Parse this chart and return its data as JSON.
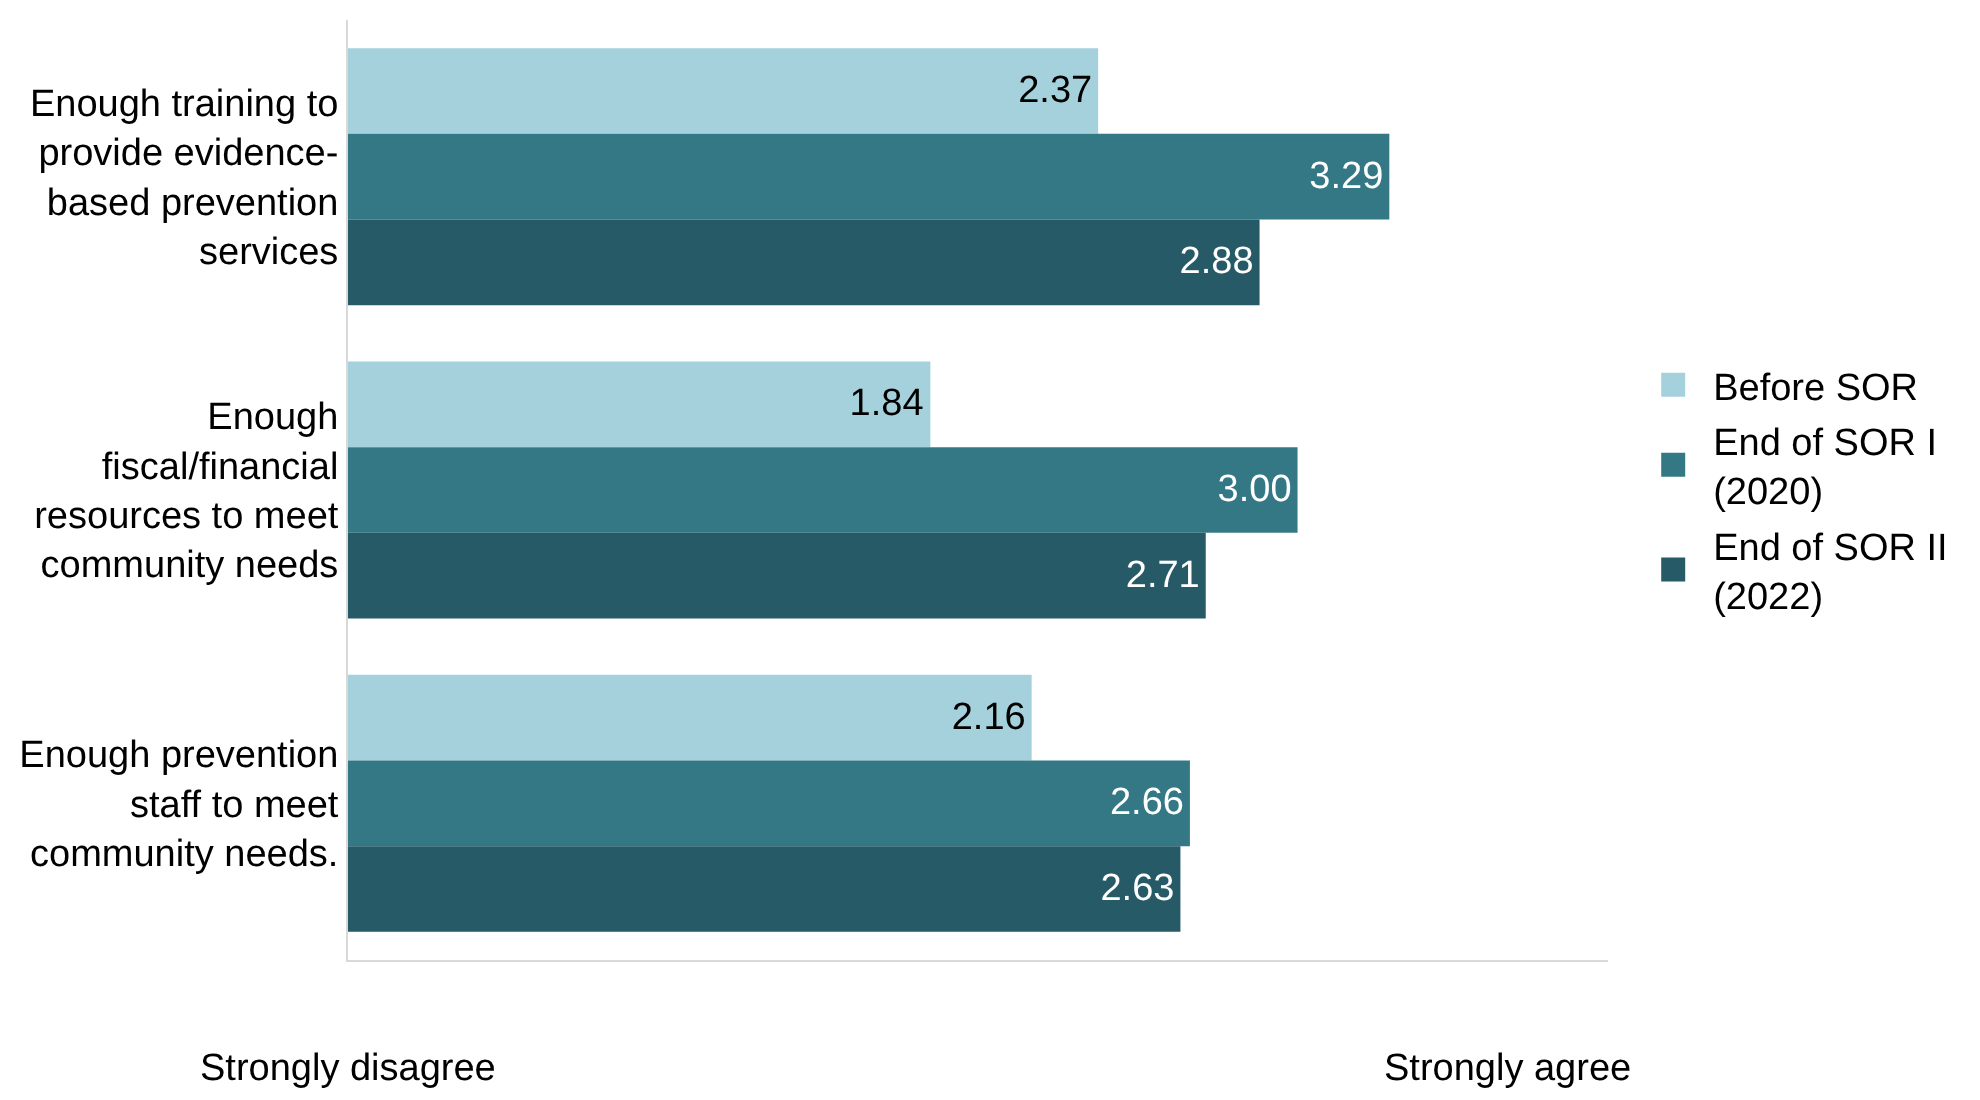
{
  "chart_data": {
    "type": "bar",
    "orientation": "horizontal",
    "categories": [
      "Enough training to provide evidence-based prevention services",
      "Enough fiscal/financial resources to meet community needs",
      "Enough prevention staff to meet community needs."
    ],
    "series": [
      {
        "name": "Before SOR",
        "color": "#a5d1dc",
        "values": [
          2.37,
          1.84,
          2.16
        ],
        "value_labels": [
          "2.37",
          "1.84",
          "2.16"
        ]
      },
      {
        "name": "End of SOR I (2020)",
        "color": "#347886",
        "values": [
          3.29,
          3.0,
          2.66
        ],
        "value_labels": [
          "3.29",
          "3.00",
          "2.66"
        ]
      },
      {
        "name": "End of SOR II (2022)",
        "color": "#265a66",
        "values": [
          2.88,
          2.71,
          2.63
        ],
        "value_labels": [
          "2.88",
          "2.71",
          "2.63"
        ]
      }
    ],
    "annotations": [
      "Strongly disagree",
      "Strongly agree"
    ],
    "legend": "right"
  }
}
